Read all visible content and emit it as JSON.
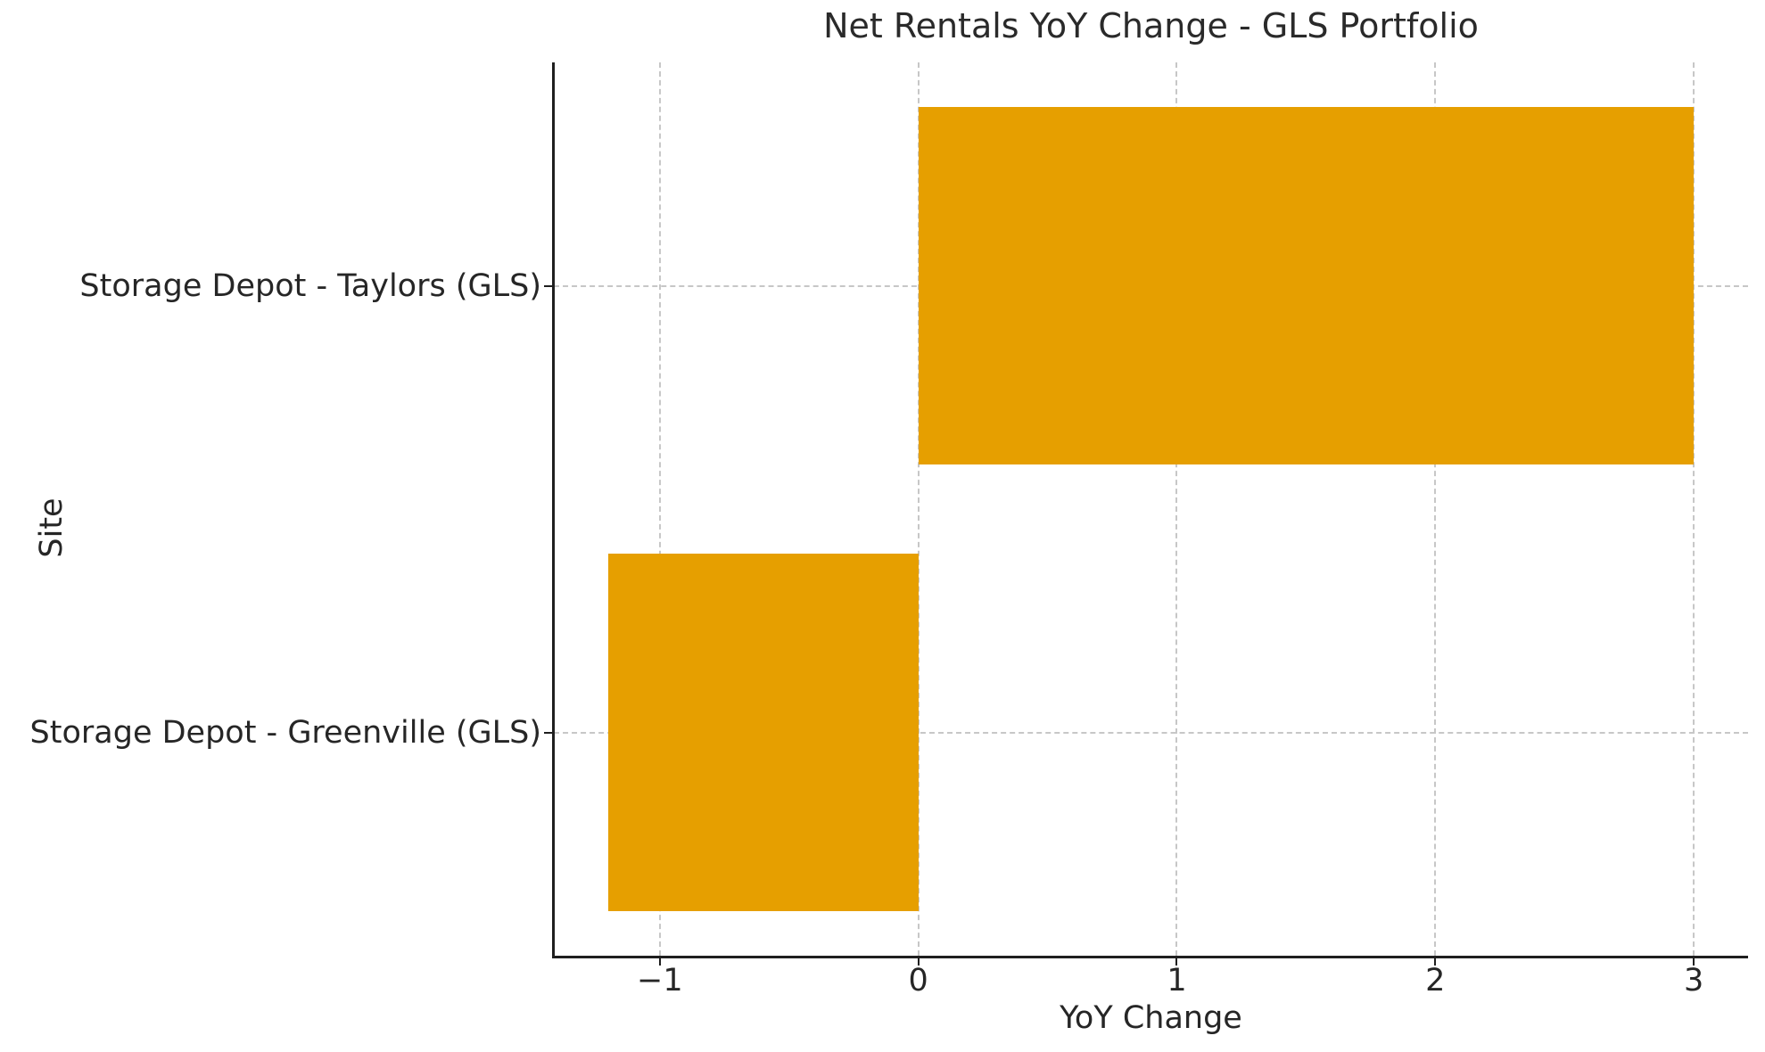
{
  "chart_data": {
    "type": "bar",
    "orientation": "horizontal",
    "title": "Net Rentals YoY Change - GLS Portfolio",
    "categories": [
      "Storage Depot - Taylors (GLS)",
      "Storage Depot - Greenville (GLS)"
    ],
    "values": [
      3.0,
      -1.2
    ],
    "xlabel": "YoY Change",
    "ylabel": "Site",
    "xlim": [
      -1.41,
      3.21
    ],
    "xticks": {
      "values": [
        -1,
        0,
        1,
        2,
        3
      ],
      "labels": [
        "−1",
        "0",
        "1",
        "2",
        "3"
      ]
    },
    "grid": "dashed",
    "legend": "none",
    "bar_height_fraction": 0.8,
    "colors": {
      "bar": "#E69F00",
      "grid": "#c7c7c7",
      "spine": "#1f1f1f",
      "text": "#262626",
      "background": "#ffffff"
    }
  }
}
